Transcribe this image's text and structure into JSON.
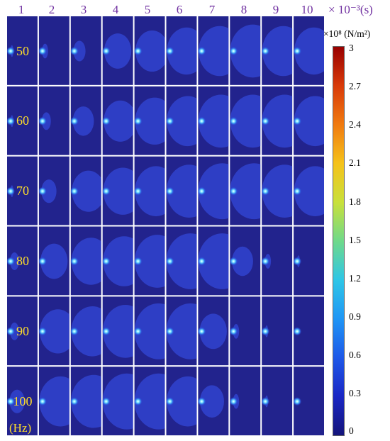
{
  "time_header": {
    "labels": [
      "1",
      "2",
      "3",
      "4",
      "5",
      "6",
      "7",
      "8",
      "9",
      "10"
    ],
    "unit": "× 10⁻³(s)"
  },
  "frequency_rows": {
    "labels": [
      "50",
      "60",
      "70",
      "80",
      "90",
      "100"
    ],
    "unit": "(Hz)"
  },
  "colorbar": {
    "unit": "×10⁸ (N/m²)",
    "ticks": [
      "3",
      "2.7",
      "2.4",
      "2.1",
      "1.8",
      "1.5",
      "1.2",
      "0.9",
      "0.6",
      "0.3",
      "0"
    ],
    "range": [
      0,
      3
    ],
    "colors": [
      "#14147a",
      "#1a27c4",
      "#1e58e8",
      "#1f96f5",
      "#2ec6e6",
      "#6fd98a",
      "#c9e03a",
      "#f5c21a",
      "#f07a10",
      "#d83a0a",
      "#980000"
    ]
  },
  "field": {
    "background_color": "#22238d",
    "plume_color": "#3348d8",
    "source_color": "#7ee8ff",
    "plume_extent": [
      [
        0.05,
        0.1,
        0.2,
        0.45,
        0.55,
        0.65,
        0.7,
        0.75,
        0.7,
        0.65
      ],
      [
        0.05,
        0.15,
        0.35,
        0.55,
        0.65,
        0.7,
        0.75,
        0.75,
        0.75,
        0.7
      ],
      [
        0.05,
        0.25,
        0.55,
        0.65,
        0.7,
        0.75,
        0.8,
        0.8,
        0.75,
        0.7
      ],
      [
        0.15,
        0.45,
        0.65,
        0.7,
        0.75,
        0.8,
        0.8,
        0.35,
        0.1,
        0.05
      ],
      [
        0.15,
        0.6,
        0.7,
        0.75,
        0.8,
        0.8,
        0.45,
        0.1,
        0.05,
        0.0
      ],
      [
        0.25,
        0.7,
        0.75,
        0.8,
        0.8,
        0.7,
        0.4,
        0.1,
        0.05,
        0.0
      ]
    ]
  }
}
